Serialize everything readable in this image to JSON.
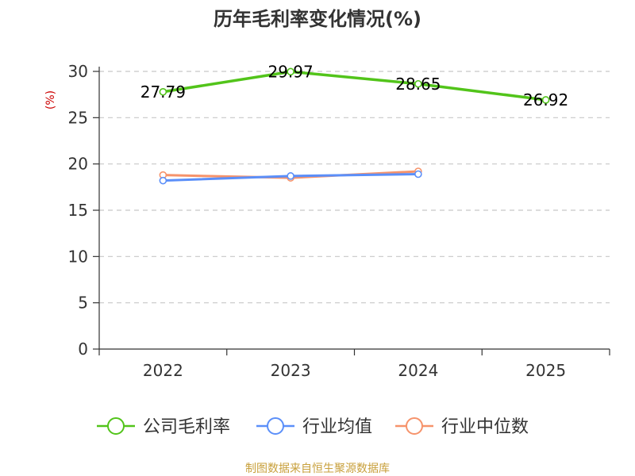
{
  "chart_data": {
    "type": "line",
    "title": "历年毛利率变化情况(%)",
    "xlabel": "",
    "ylabel": "(%)",
    "ylabel_color": "#cc0000",
    "categories": [
      "2022",
      "2023",
      "2024",
      "2025"
    ],
    "ylim": [
      0,
      30
    ],
    "yticks": [
      "0",
      "5",
      "10",
      "15",
      "20",
      "25",
      "30"
    ],
    "grid": "horizontal dashed",
    "legend_position": "bottom",
    "series": [
      {
        "name": "公司毛利率",
        "color": "#52c41a",
        "values": [
          27.79,
          29.97,
          28.65,
          26.92
        ],
        "data_labels": [
          "27.79",
          "29.97",
          "28.65",
          "26.92"
        ]
      },
      {
        "name": "行业均值",
        "color": "#5b8ff9",
        "values": [
          18.2,
          18.7,
          18.9,
          null
        ]
      },
      {
        "name": "行业中位数",
        "color": "#f6936b",
        "values": [
          18.8,
          18.5,
          19.2,
          null
        ]
      }
    ]
  },
  "footer": {
    "source": "制图数据来自恒生聚源数据库",
    "source_color": "#c8a03c"
  }
}
